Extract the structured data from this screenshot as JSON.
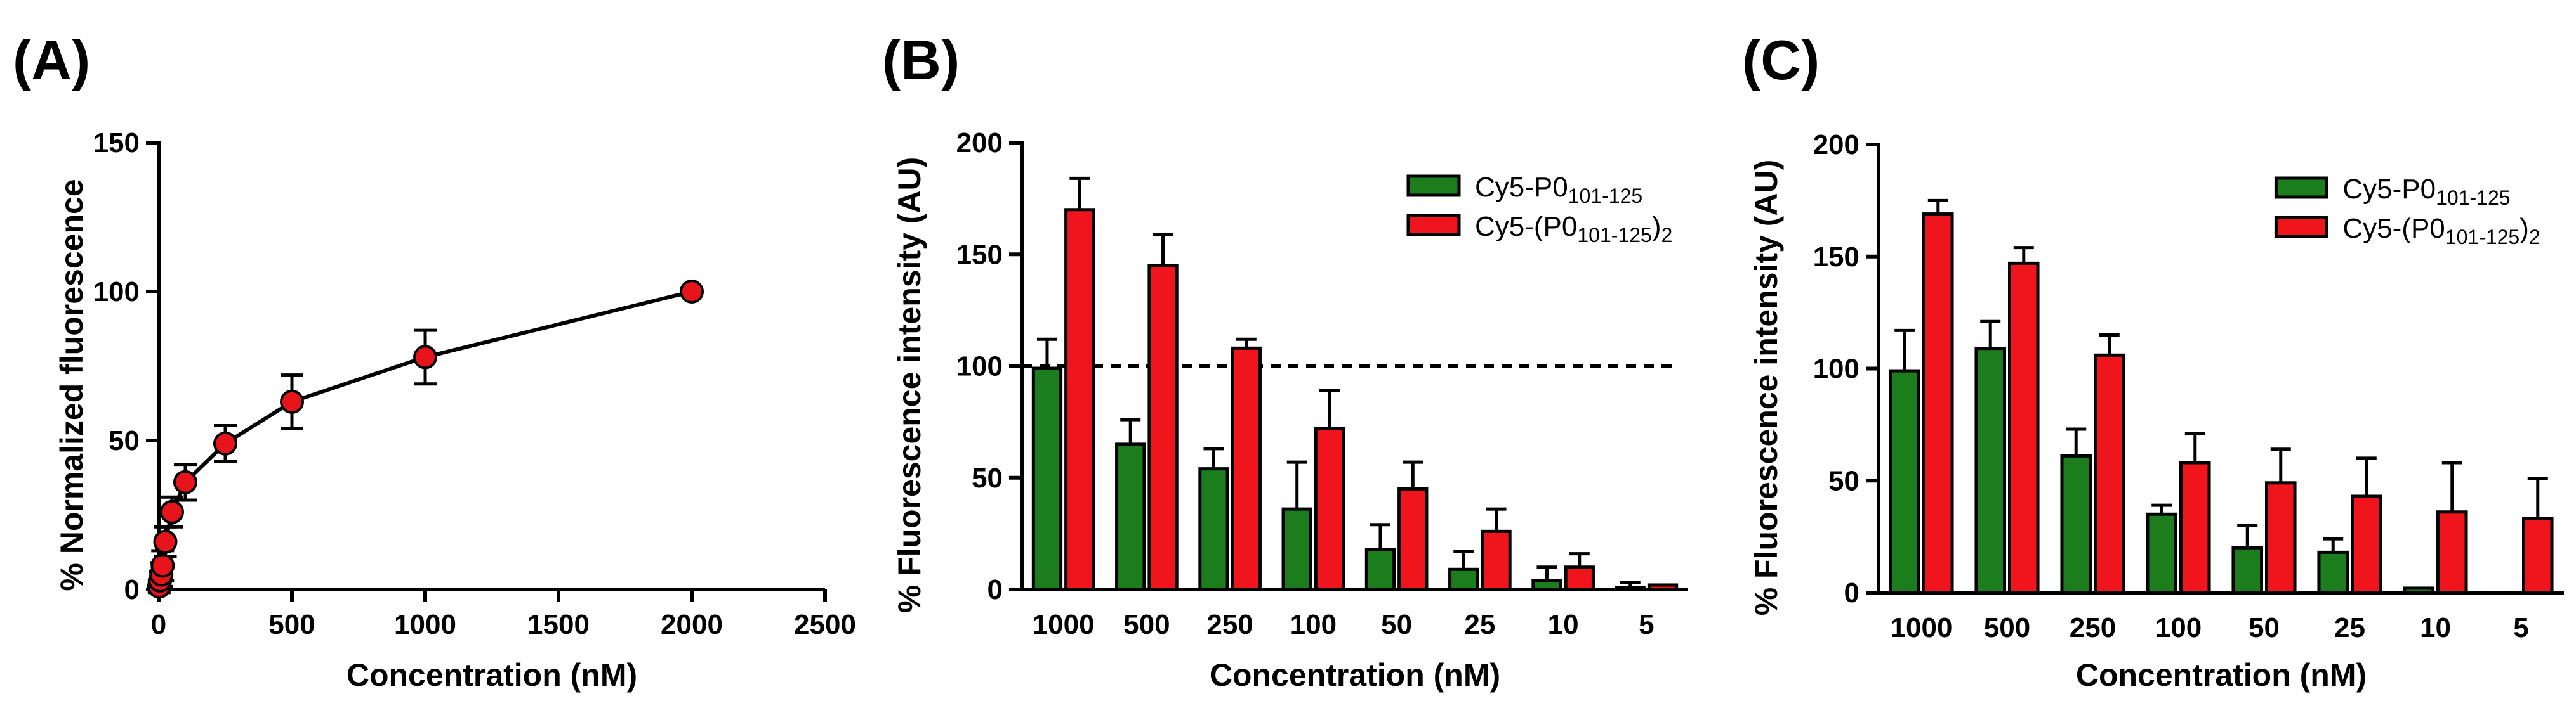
{
  "chart_data": [
    {
      "panel": "(A)",
      "type": "scatter",
      "xlabel": "Concentration (nM)",
      "ylabel": "% Normalized fluorescence",
      "xlim": [
        0,
        2500
      ],
      "ylim": [
        0,
        150
      ],
      "xticks": [
        "0",
        "500",
        "1000",
        "1500",
        "2000",
        "2500"
      ],
      "yticks": [
        "0",
        "50",
        "100",
        "150"
      ],
      "points": [
        {
          "x": 2,
          "y": 1,
          "err": 2
        },
        {
          "x": 5,
          "y": 3,
          "err": 3
        },
        {
          "x": 10,
          "y": 5,
          "err": 4
        },
        {
          "x": 15,
          "y": 8,
          "err": 5
        },
        {
          "x": 25,
          "y": 16,
          "err": 5
        },
        {
          "x": 50,
          "y": 26,
          "err": 5
        },
        {
          "x": 100,
          "y": 36,
          "err": 6
        },
        {
          "x": 250,
          "y": 49,
          "err": 6
        },
        {
          "x": 500,
          "y": 63,
          "err": 9
        },
        {
          "x": 1000,
          "y": 78,
          "err": 9
        },
        {
          "x": 2000,
          "y": 100,
          "err": 0
        }
      ],
      "color": "#e8141c"
    },
    {
      "panel": "(B)",
      "type": "bar",
      "xlabel": "Concentration (nM)",
      "ylabel": "% Fluorescence intensity (AU)",
      "ylim": [
        0,
        200
      ],
      "yticks": [
        "0",
        "50",
        "100",
        "150",
        "200"
      ],
      "categories": [
        "1000",
        "500",
        "250",
        "100",
        "50",
        "25",
        "10",
        "5"
      ],
      "reference_line": 100,
      "series": [
        {
          "name": "Cy5-P0",
          "sub": "101-125",
          "suffix": "",
          "color": "#1c7d1c",
          "values": [
            99,
            65,
            54,
            36,
            18,
            9,
            4,
            1
          ],
          "errors": [
            13,
            11,
            9,
            21,
            11,
            8,
            6,
            2
          ]
        },
        {
          "name": "Cy5-(P0",
          "sub": "101-125",
          "suffix": ")",
          "suffix_sub": "2",
          "color": "#f0141c",
          "values": [
            170,
            145,
            108,
            72,
            45,
            26,
            10,
            2
          ],
          "errors": [
            14,
            14,
            4,
            17,
            12,
            10,
            6,
            0
          ]
        }
      ]
    },
    {
      "panel": "(C)",
      "type": "bar",
      "xlabel": "Concentration (nM)",
      "ylabel": "% Fluorescence intensity (AU)",
      "ylim": [
        0,
        200
      ],
      "yticks": [
        "0",
        "50",
        "100",
        "150",
        "200"
      ],
      "categories": [
        "1000",
        "500",
        "250",
        "100",
        "50",
        "25",
        "10",
        "5"
      ],
      "series": [
        {
          "name": "Cy5-P0",
          "sub": "101-125",
          "suffix": "",
          "color": "#1c7d1c",
          "values": [
            99,
            109,
            61,
            35,
            20,
            18,
            2,
            0
          ],
          "errors": [
            18,
            12,
            12,
            4,
            10,
            6,
            0,
            0
          ]
        },
        {
          "name": "Cy5-(P0",
          "sub": "101-125",
          "suffix": ")",
          "suffix_sub": "2",
          "color": "#f0141c",
          "values": [
            169,
            147,
            106,
            58,
            49,
            43,
            36,
            33
          ],
          "errors": [
            6,
            7,
            9,
            13,
            15,
            17,
            22,
            18
          ]
        }
      ]
    }
  ]
}
